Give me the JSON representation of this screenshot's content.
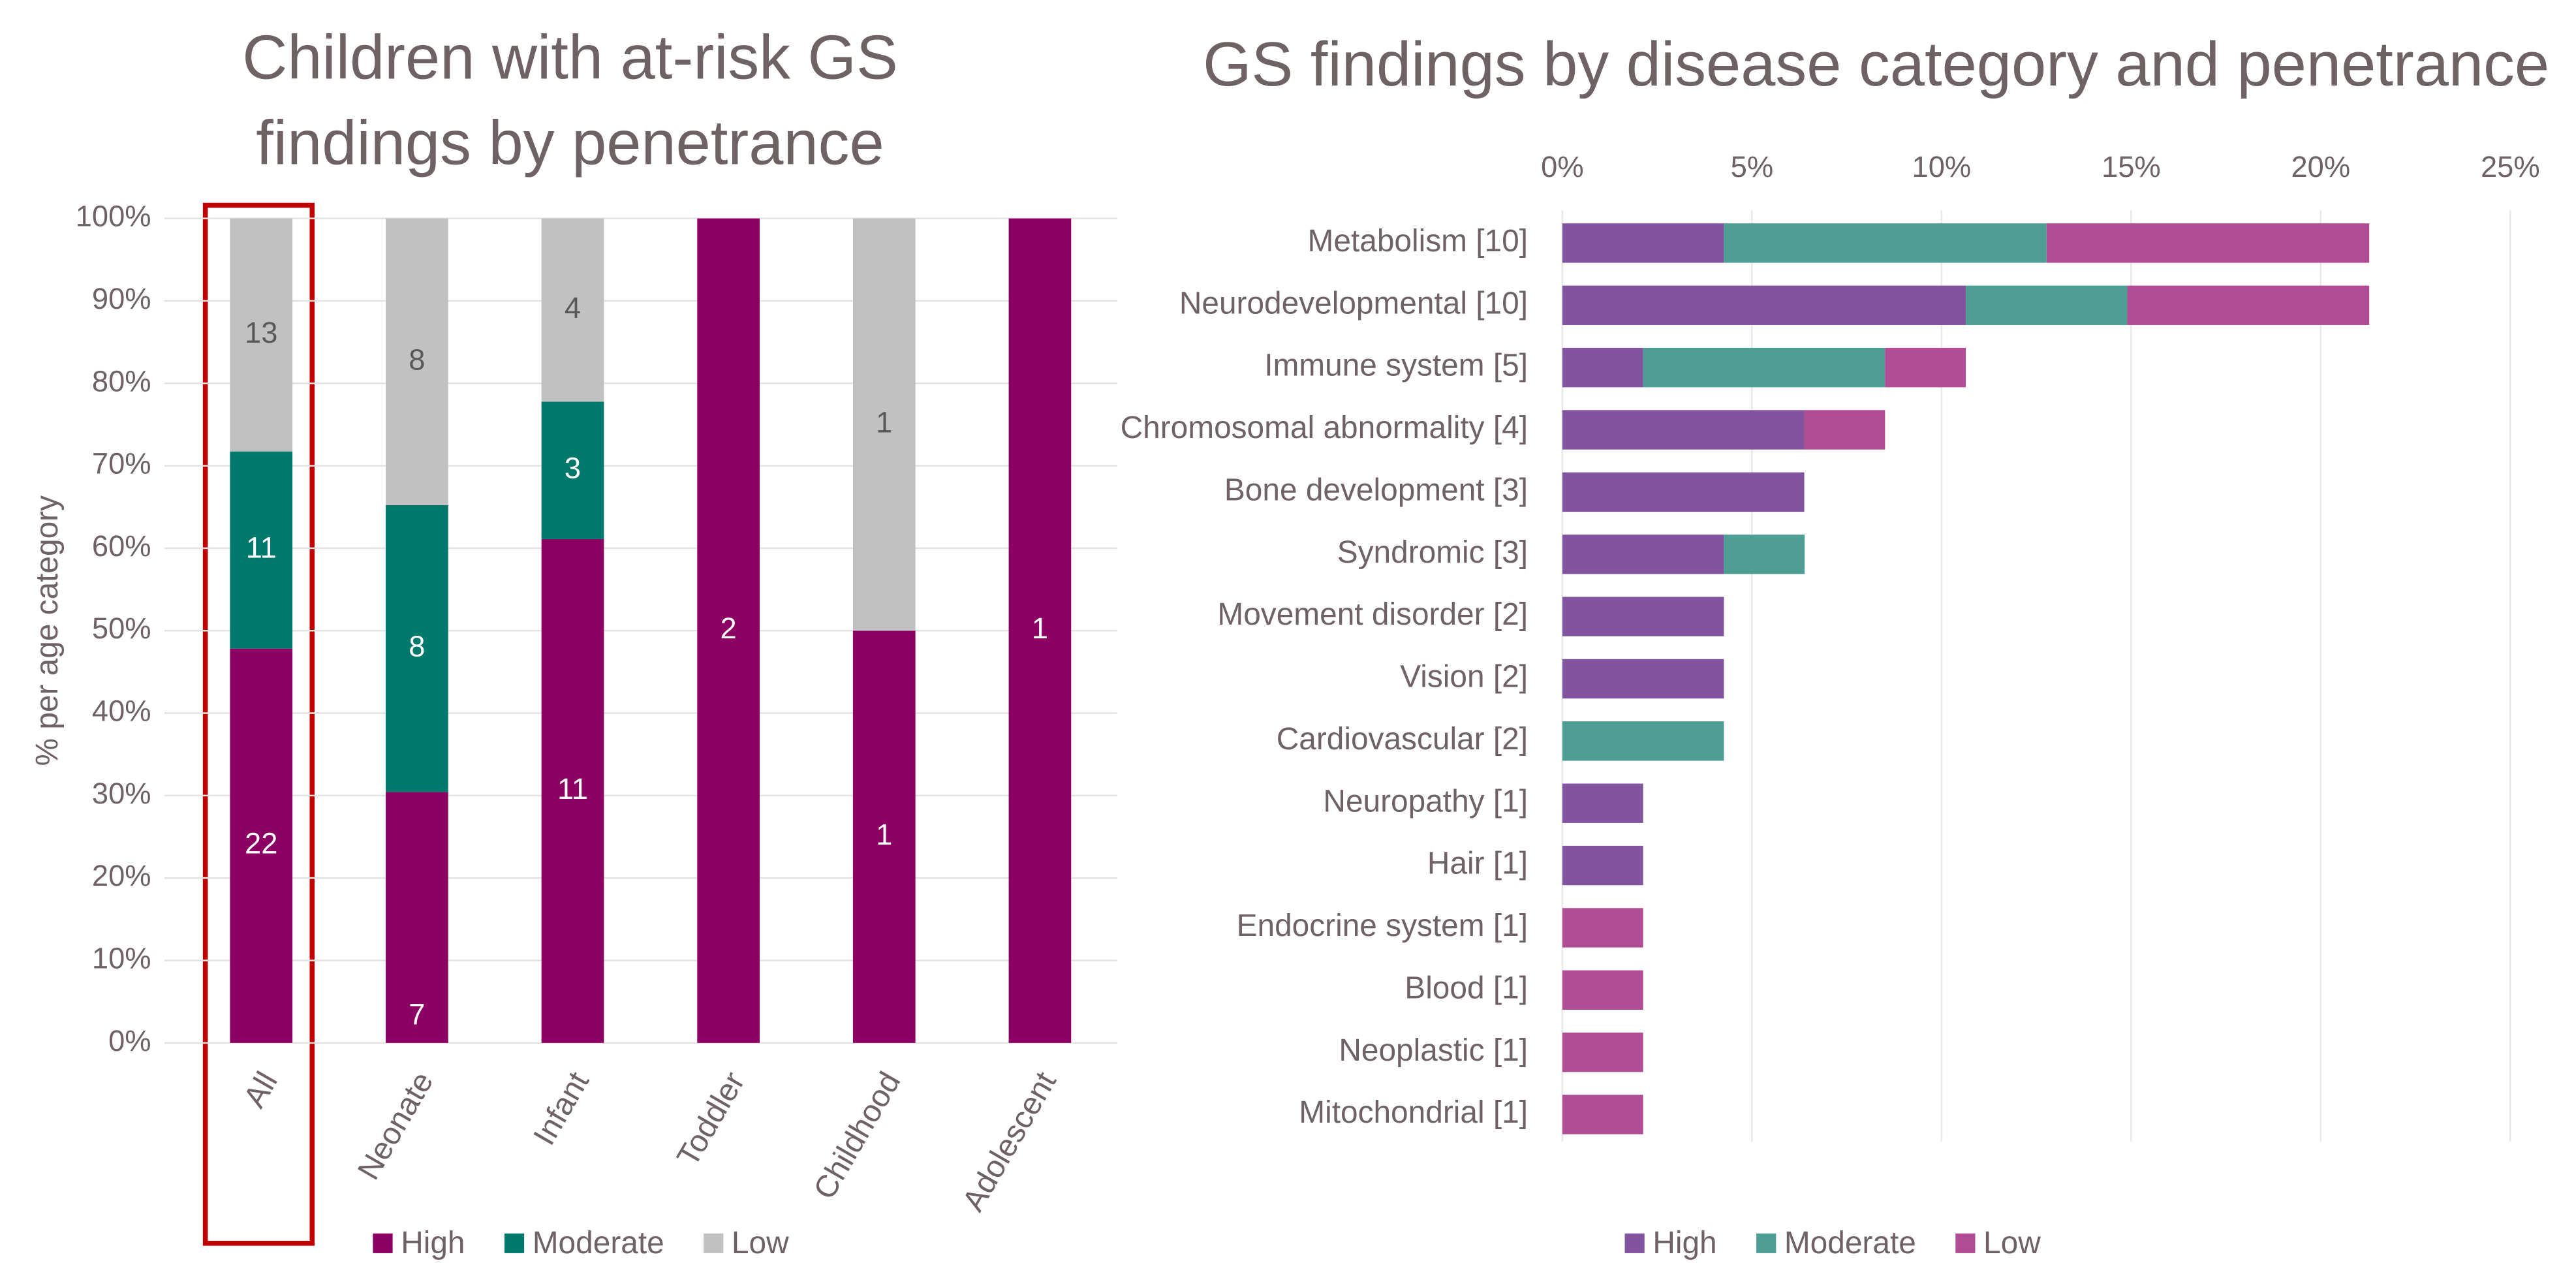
{
  "chart_data": [
    {
      "type": "bar",
      "stacking": "percent",
      "orientation": "vertical",
      "title": "Children with at-risk GS findings by penetrance",
      "y_label": "% per age category",
      "categories": [
        "All",
        "Neonate",
        "Infant",
        "Toddler",
        "Childhood",
        "Adolescent"
      ],
      "series": [
        {
          "name": "High",
          "color": "#8b0062",
          "values": [
            22,
            7,
            11,
            2,
            1,
            1
          ]
        },
        {
          "name": "Moderate",
          "color": "#00786b",
          "values": [
            11,
            8,
            3,
            null,
            null,
            null
          ]
        },
        {
          "name": "Low",
          "color": "#c1c1c2",
          "values": [
            13,
            8,
            4,
            null,
            1,
            null
          ]
        }
      ],
      "ylim": [
        0,
        100
      ],
      "yticks": [
        {
          "value": 0,
          "label": "0%"
        },
        {
          "value": 10,
          "label": "10%"
        },
        {
          "value": 20,
          "label": "20%"
        },
        {
          "value": 30,
          "label": "30%"
        },
        {
          "value": 40,
          "label": "40%"
        },
        {
          "value": 50,
          "label": "50%"
        },
        {
          "value": 60,
          "label": "60%"
        },
        {
          "value": 70,
          "label": "70%"
        },
        {
          "value": 80,
          "label": "80%"
        },
        {
          "value": 90,
          "label": "90%"
        },
        {
          "value": 100,
          "label": "100%"
        }
      ],
      "grid": true,
      "legend": "bottom"
    },
    {
      "type": "bar",
      "stacking": "stacked",
      "orientation": "horizontal",
      "title": "GS findings by disease category and penetrance",
      "categories": [
        "Metabolism [10]",
        "Neurodevelopmental [10]",
        "Immune system [5]",
        "Chromosomal abnormality [4]",
        "Bone development [3]",
        "Syndromic [3]",
        "Movement disorder [2]",
        "Vision [2]",
        "Cardiovascular [2]",
        "Neuropathy [1]",
        "Hair  [1]",
        "Endocrine system  [1]",
        "Blood  [1]",
        "Neoplastic  [1]",
        "Mitochondrial  [1]"
      ],
      "series": [
        {
          "name": "High",
          "color": "#8254a0",
          "values": [
            4.26,
            10.64,
            2.13,
            6.38,
            6.38,
            4.26,
            4.26,
            4.26,
            null,
            2.13,
            2.13,
            null,
            null,
            null,
            null
          ]
        },
        {
          "name": "Moderate",
          "color": "#4e9e94",
          "values": [
            8.51,
            4.26,
            6.38,
            null,
            null,
            2.13,
            null,
            null,
            4.26,
            null,
            null,
            null,
            null,
            null,
            null
          ]
        },
        {
          "name": "Low",
          "color": "#b04d94",
          "values": [
            8.51,
            6.38,
            2.13,
            2.13,
            null,
            null,
            null,
            null,
            null,
            null,
            null,
            2.13,
            2.13,
            2.13,
            2.13
          ]
        }
      ],
      "xlim": [
        0,
        25
      ],
      "xticks": [
        {
          "value": 0,
          "label": "0%"
        },
        {
          "value": 5,
          "label": "5%"
        },
        {
          "value": 10,
          "label": "10%"
        },
        {
          "value": 15,
          "label": "15%"
        },
        {
          "value": 20,
          "label": "20%"
        },
        {
          "value": 25,
          "label": "25%"
        }
      ],
      "grid": true,
      "legend": "bottom"
    }
  ]
}
